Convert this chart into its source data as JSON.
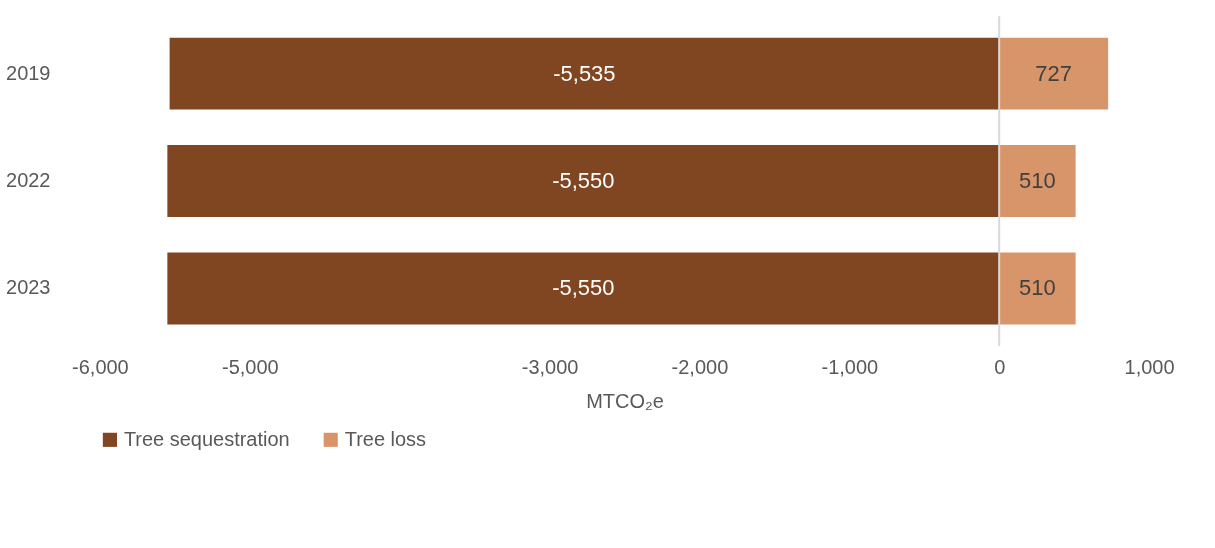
{
  "chart_data": {
    "type": "bar",
    "orientation": "horizontal",
    "stacked": true,
    "categories": [
      "2019",
      "2022",
      "2023"
    ],
    "series": [
      {
        "name": "Tree sequestration",
        "color": "#7f4621",
        "values": [
          -5535,
          -5550,
          -5550
        ],
        "value_labels": [
          "-5,535",
          "-5,550",
          "-5,550"
        ]
      },
      {
        "name": "Tree loss",
        "color": "#d9956a",
        "values": [
          727,
          510,
          510
        ],
        "value_labels": [
          "727",
          "510",
          "510"
        ]
      }
    ],
    "xlim": [
      -6000,
      1000
    ],
    "xticks": [
      {
        "value": -6000,
        "label": "-6,000"
      },
      {
        "value": -5000,
        "label": "-5,000"
      },
      {
        "value": -3000,
        "label": "-3,000"
      },
      {
        "value": -2000,
        "label": "-2,000"
      },
      {
        "value": -1000,
        "label": "-1,000"
      },
      0,
      {
        "value": 1000,
        "label": "1,000"
      }
    ],
    "xlabel": "MTCO₂e",
    "legend": "bottom",
    "grid": false,
    "ref_lines": [
      {
        "axis": "x",
        "value": 0,
        "color": "#d9d9d9"
      }
    ]
  }
}
